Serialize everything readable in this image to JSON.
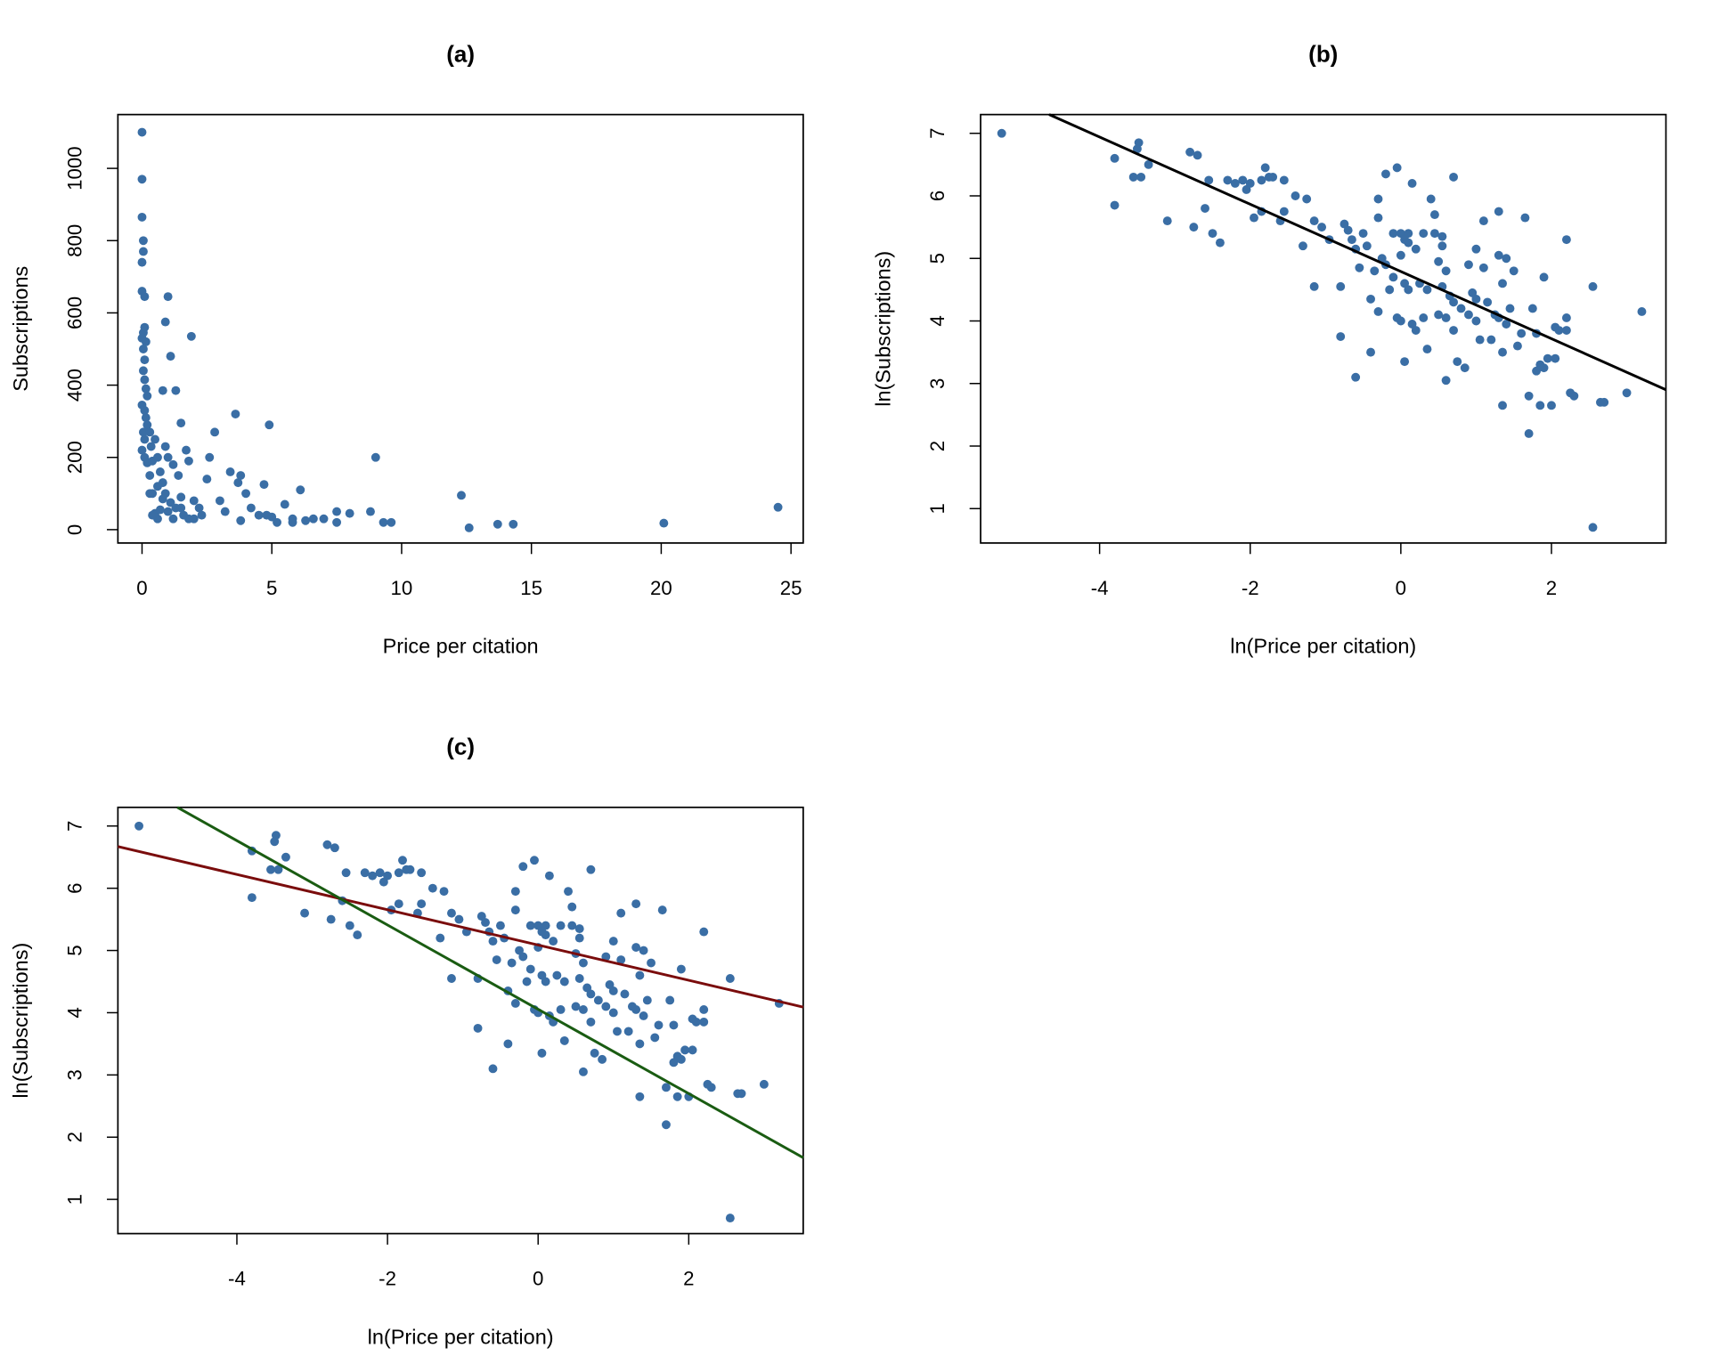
{
  "chart_data": [
    {
      "type": "scatter",
      "title": "(a)",
      "x_label": "Price per citation",
      "y_label": "Subscriptions",
      "xlim": [
        -0.93,
        25.47
      ],
      "ylim": [
        -37,
        1149
      ],
      "xticks": [
        0,
        5,
        10,
        15,
        20,
        25
      ],
      "yticks": [
        0,
        200,
        400,
        600,
        800,
        1000
      ],
      "series": [
        {
          "color": "#3a6ea5",
          "x": [
            0,
            0,
            0,
            0.05,
            0.05,
            0,
            0,
            0.1,
            0.05,
            0.1,
            0.15,
            0,
            0.05,
            0.1,
            0.05,
            0.1,
            0.15,
            0.2,
            0,
            0.1,
            0.15,
            0.2,
            0.05,
            0.1,
            0,
            0.1,
            0.2,
            0.3,
            0.35,
            0.4,
            0.4,
            0.5,
            0.6,
            0.7,
            0.8,
            0.9,
            0.5,
            0.6,
            0.7,
            0.8,
            0.9,
            1.0,
            1.1,
            1.3,
            1.5,
            1.9,
            0.9,
            1.0,
            1.2,
            1.4,
            1.5,
            1.1,
            1.3,
            1.6,
            1.8,
            0.8,
            1.0,
            1.2,
            1.7,
            1.8,
            2.0,
            2.2,
            2.3,
            2.5,
            2.6,
            2.8,
            3.0,
            3.2,
            3.4,
            3.6,
            3.7,
            3.8,
            4.0,
            4.2,
            4.5,
            4.7,
            4.9,
            5.0,
            5.2,
            5.5,
            5.8,
            6.1,
            6.3,
            6.6,
            7.0,
            7.5,
            8.0,
            8.8,
            9.0,
            9.3,
            9.6,
            12.3,
            12.6,
            13.7,
            14.3,
            20.1,
            24.5,
            0.3,
            0.6,
            2.0,
            1.5,
            3.8,
            5.8,
            4.8,
            7.5,
            0.4,
            0.3
          ],
          "values": [
            1100,
            970,
            865,
            800,
            770,
            740,
            660,
            645,
            545,
            560,
            520,
            530,
            500,
            470,
            440,
            415,
            390,
            370,
            345,
            330,
            310,
            290,
            270,
            250,
            220,
            200,
            185,
            270,
            230,
            190,
            100,
            250,
            200,
            160,
            130,
            100,
            45,
            30,
            55,
            385,
            575,
            645,
            480,
            385,
            295,
            535,
            230,
            200,
            180,
            150,
            90,
            75,
            60,
            40,
            30,
            85,
            50,
            30,
            220,
            190,
            80,
            60,
            40,
            140,
            200,
            270,
            80,
            50,
            160,
            320,
            130,
            150,
            100,
            60,
            40,
            125,
            290,
            35,
            20,
            70,
            30,
            110,
            25,
            30,
            30,
            20,
            45,
            50,
            200,
            20,
            20,
            95,
            5,
            15,
            15,
            18,
            62,
            100,
            120,
            30,
            60,
            25,
            20,
            40,
            50,
            40,
            150
          ]
        }
      ]
    },
    {
      "type": "scatter",
      "title": "(b)",
      "x_label": "ln(Price per citation)",
      "y_label": "ln(Subscriptions)",
      "xlim": [
        -5.58,
        3.52
      ],
      "ylim": [
        0.45,
        7.3
      ],
      "xticks": [
        -4,
        -2,
        0,
        2
      ],
      "yticks": [
        1,
        2,
        3,
        4,
        5,
        6,
        7
      ],
      "series": [
        {
          "color": "#3a6ea5",
          "x": [
            -5.3,
            -3.8,
            -3.5,
            -3.48,
            -3.55,
            -3.45,
            -3.35,
            -3.8,
            -3.1,
            -2.8,
            -2.7,
            -2.55,
            -2.6,
            -2.75,
            -2.5,
            -2.4,
            -2.3,
            -2.2,
            -2.1,
            -2.05,
            -2.0,
            -1.95,
            -1.85,
            -1.8,
            -1.75,
            -1.7,
            -1.85,
            -1.6,
            -1.55,
            -1.55,
            -1.4,
            -1.3,
            -1.25,
            -1.15,
            -1.15,
            -1.05,
            -0.95,
            -0.8,
            -0.8,
            -0.75,
            -0.7,
            -0.65,
            -0.6,
            -0.6,
            -0.55,
            -0.5,
            -0.45,
            -0.4,
            -0.4,
            -0.35,
            -0.3,
            -0.3,
            -0.3,
            -0.25,
            -0.2,
            -0.2,
            -0.15,
            -0.1,
            -0.1,
            -0.05,
            -0.05,
            0.0,
            0.0,
            0.0,
            0.05,
            0.05,
            0.05,
            0.1,
            0.1,
            0.1,
            0.15,
            0.15,
            0.2,
            0.2,
            0.25,
            0.3,
            0.3,
            0.35,
            0.35,
            0.4,
            0.45,
            0.45,
            0.5,
            0.5,
            0.55,
            0.55,
            0.55,
            0.6,
            0.6,
            0.6,
            0.65,
            0.7,
            0.7,
            0.7,
            0.75,
            0.8,
            0.85,
            0.9,
            0.9,
            0.95,
            1.0,
            1.0,
            1.0,
            1.05,
            1.1,
            1.1,
            1.15,
            1.2,
            1.25,
            1.3,
            1.3,
            1.3,
            1.35,
            1.35,
            1.35,
            1.4,
            1.4,
            1.45,
            1.5,
            1.55,
            1.6,
            1.65,
            1.7,
            1.7,
            1.75,
            1.8,
            1.8,
            1.85,
            1.85,
            1.9,
            1.9,
            1.95,
            2.05,
            2.0,
            2.05,
            2.1,
            2.2,
            2.2,
            2.2,
            2.25,
            2.3,
            2.55,
            2.55,
            2.65,
            2.7,
            3.0,
            3.2
          ],
          "values": [
            7.0,
            6.6,
            6.75,
            6.85,
            6.3,
            6.3,
            6.5,
            5.85,
            5.6,
            6.7,
            6.65,
            6.25,
            5.8,
            5.5,
            5.4,
            5.25,
            6.25,
            6.2,
            6.25,
            6.1,
            6.2,
            5.65,
            5.75,
            6.45,
            6.3,
            6.3,
            6.25,
            5.6,
            6.25,
            5.75,
            6.0,
            5.2,
            5.95,
            5.6,
            4.55,
            5.5,
            5.3,
            3.75,
            4.55,
            5.55,
            5.45,
            5.3,
            5.15,
            3.1,
            4.85,
            5.4,
            5.2,
            4.35,
            3.5,
            4.8,
            4.15,
            5.95,
            5.65,
            5.0,
            6.35,
            4.9,
            4.5,
            4.7,
            5.4,
            4.05,
            6.45,
            4.0,
            5.05,
            5.4,
            5.3,
            4.6,
            3.35,
            5.4,
            5.25,
            4.5,
            6.2,
            3.95,
            5.15,
            3.85,
            4.6,
            4.05,
            5.4,
            4.5,
            3.55,
            5.95,
            5.7,
            5.4,
            4.95,
            4.1,
            5.35,
            5.2,
            4.55,
            4.05,
            3.05,
            4.8,
            4.4,
            4.3,
            6.3,
            3.85,
            3.35,
            4.2,
            3.25,
            4.9,
            4.1,
            4.45,
            4.35,
            5.15,
            4.0,
            3.7,
            4.85,
            5.6,
            4.3,
            3.7,
            4.1,
            4.05,
            5.05,
            5.75,
            3.5,
            4.6,
            2.65,
            5.0,
            3.95,
            4.2,
            4.8,
            3.6,
            3.8,
            5.65,
            2.2,
            2.8,
            4.2,
            3.8,
            3.2,
            3.3,
            2.65,
            3.25,
            4.7,
            3.4,
            3.4,
            2.65,
            3.9,
            3.85,
            4.05,
            3.85,
            5.3,
            2.85,
            2.8,
            4.55,
            0.7,
            2.7,
            2.7,
            2.85,
            4.15
          ]
        }
      ],
      "lines": [
        {
          "color": "#000000",
          "x": [
            -4.67,
            3.52
          ],
          "values": [
            7.3,
            2.9
          ]
        }
      ]
    },
    {
      "type": "scatter",
      "title": "(c)",
      "x_label": "ln(Price per citation)",
      "y_label": "ln(Subscriptions)",
      "xlim": [
        -5.58,
        3.52
      ],
      "ylim": [
        0.45,
        7.3
      ],
      "xticks": [
        -4,
        -2,
        0,
        2
      ],
      "yticks": [
        1,
        2,
        3,
        4,
        5,
        6,
        7
      ],
      "series": [
        {
          "color": "#3a6ea5",
          "x": [
            -5.3,
            -3.8,
            -3.5,
            -3.48,
            -3.55,
            -3.45,
            -3.35,
            -3.8,
            -3.1,
            -2.8,
            -2.7,
            -2.55,
            -2.6,
            -2.75,
            -2.5,
            -2.4,
            -2.3,
            -2.2,
            -2.1,
            -2.05,
            -2.0,
            -1.95,
            -1.85,
            -1.8,
            -1.75,
            -1.7,
            -1.85,
            -1.6,
            -1.55,
            -1.55,
            -1.4,
            -1.3,
            -1.25,
            -1.15,
            -1.15,
            -1.05,
            -0.95,
            -0.8,
            -0.8,
            -0.75,
            -0.7,
            -0.65,
            -0.6,
            -0.6,
            -0.55,
            -0.5,
            -0.45,
            -0.4,
            -0.4,
            -0.35,
            -0.3,
            -0.3,
            -0.3,
            -0.25,
            -0.2,
            -0.2,
            -0.15,
            -0.1,
            -0.1,
            -0.05,
            -0.05,
            0.0,
            0.0,
            0.0,
            0.05,
            0.05,
            0.05,
            0.1,
            0.1,
            0.1,
            0.15,
            0.15,
            0.2,
            0.2,
            0.25,
            0.3,
            0.3,
            0.35,
            0.35,
            0.4,
            0.45,
            0.45,
            0.5,
            0.5,
            0.55,
            0.55,
            0.55,
            0.6,
            0.6,
            0.6,
            0.65,
            0.7,
            0.7,
            0.7,
            0.75,
            0.8,
            0.85,
            0.9,
            0.9,
            0.95,
            1.0,
            1.0,
            1.0,
            1.05,
            1.1,
            1.1,
            1.15,
            1.2,
            1.25,
            1.3,
            1.3,
            1.3,
            1.35,
            1.35,
            1.35,
            1.4,
            1.4,
            1.45,
            1.5,
            1.55,
            1.6,
            1.65,
            1.7,
            1.7,
            1.75,
            1.8,
            1.8,
            1.85,
            1.85,
            1.9,
            1.9,
            1.95,
            2.05,
            2.0,
            2.05,
            2.1,
            2.2,
            2.2,
            2.2,
            2.25,
            2.3,
            2.55,
            2.55,
            2.65,
            2.7,
            3.0,
            3.2
          ],
          "values": [
            7.0,
            6.6,
            6.75,
            6.85,
            6.3,
            6.3,
            6.5,
            5.85,
            5.6,
            6.7,
            6.65,
            6.25,
            5.8,
            5.5,
            5.4,
            5.25,
            6.25,
            6.2,
            6.25,
            6.1,
            6.2,
            5.65,
            5.75,
            6.45,
            6.3,
            6.3,
            6.25,
            5.6,
            6.25,
            5.75,
            6.0,
            5.2,
            5.95,
            5.6,
            4.55,
            5.5,
            5.3,
            3.75,
            4.55,
            5.55,
            5.45,
            5.3,
            5.15,
            3.1,
            4.85,
            5.4,
            5.2,
            4.35,
            3.5,
            4.8,
            4.15,
            5.95,
            5.65,
            5.0,
            6.35,
            4.9,
            4.5,
            4.7,
            5.4,
            4.05,
            6.45,
            4.0,
            5.05,
            5.4,
            5.3,
            4.6,
            3.35,
            5.4,
            5.25,
            4.5,
            6.2,
            3.95,
            5.15,
            3.85,
            4.6,
            4.05,
            5.4,
            4.5,
            3.55,
            5.95,
            5.7,
            5.4,
            4.95,
            4.1,
            5.35,
            5.2,
            4.55,
            4.05,
            3.05,
            4.8,
            4.4,
            4.3,
            6.3,
            3.85,
            3.35,
            4.2,
            3.25,
            4.9,
            4.1,
            4.45,
            4.35,
            5.15,
            4.0,
            3.7,
            4.85,
            5.6,
            4.3,
            3.7,
            4.1,
            4.05,
            5.05,
            5.75,
            3.5,
            4.6,
            2.65,
            5.0,
            3.95,
            4.2,
            4.8,
            3.6,
            3.8,
            5.65,
            2.2,
            2.8,
            4.2,
            3.8,
            3.2,
            3.3,
            2.65,
            3.25,
            4.7,
            3.4,
            3.4,
            2.65,
            3.9,
            3.85,
            4.05,
            3.85,
            5.3,
            2.85,
            2.8,
            4.55,
            0.7,
            2.7,
            2.7,
            2.85,
            4.15
          ]
        }
      ],
      "lines": [
        {
          "color": "#7a0c0c",
          "x": [
            -5.58,
            3.52
          ],
          "values": [
            6.67,
            4.09
          ]
        },
        {
          "color": "#1a5c12",
          "x": [
            -4.79,
            3.52
          ],
          "values": [
            7.3,
            1.67
          ]
        }
      ]
    }
  ]
}
